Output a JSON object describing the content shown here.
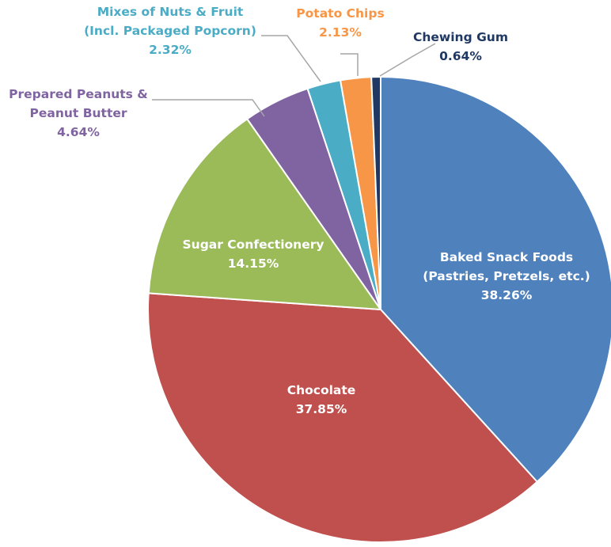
{
  "chart_data": {
    "type": "pie",
    "title": "",
    "start_angle_deg": 0,
    "direction": "clockwise",
    "slices": [
      {
        "label": "Baked Snack Foods (Pastries, Pretzels, etc.)",
        "label_lines": [
          "Baked Snack Foods",
          "(Pastries, Pretzels, etc.)"
        ],
        "pct_text": "38.26%",
        "value": 38.26,
        "color": "#4f81bd",
        "label_color": "#ffffff",
        "label_placement": "inside"
      },
      {
        "label": "Chocolate",
        "label_lines": [
          "Chocolate"
        ],
        "pct_text": "37.85%",
        "value": 37.85,
        "color": "#c0504d",
        "label_color": "#ffffff",
        "label_placement": "inside"
      },
      {
        "label": "Sugar Confectionery",
        "label_lines": [
          "Sugar Confectionery"
        ],
        "pct_text": "14.15%",
        "value": 14.15,
        "color": "#9bbb59",
        "label_color": "#ffffff",
        "label_placement": "inside"
      },
      {
        "label": "Prepared Peanuts & Peanut Butter",
        "label_lines": [
          "Prepared Peanuts &",
          "Peanut Butter"
        ],
        "pct_text": "4.64%",
        "value": 4.64,
        "color": "#8064a2",
        "label_color": "#8064a2",
        "label_placement": "outside"
      },
      {
        "label": "Mixes of Nuts & Fruit (Incl. Packaged Popcorn)",
        "label_lines": [
          "Mixes of Nuts & Fruit",
          "(Incl. Packaged  Popcorn)"
        ],
        "pct_text": "2.32%",
        "value": 2.32,
        "color": "#4bacc6",
        "label_color": "#4bacc6",
        "label_placement": "outside"
      },
      {
        "label": "Potato Chips",
        "label_lines": [
          "Potato Chips"
        ],
        "pct_text": "2.13%",
        "value": 2.13,
        "color": "#f79646",
        "label_color": "#f79646",
        "label_placement": "outside"
      },
      {
        "label": "Chewing Gum",
        "label_lines": [
          "Chewing Gum"
        ],
        "pct_text": "0.64%",
        "value": 0.64,
        "color": "#1f3864",
        "label_color": "#1f3864",
        "label_placement": "outside"
      }
    ],
    "leader_line_color": "#a6a6a6",
    "legend": "none"
  }
}
